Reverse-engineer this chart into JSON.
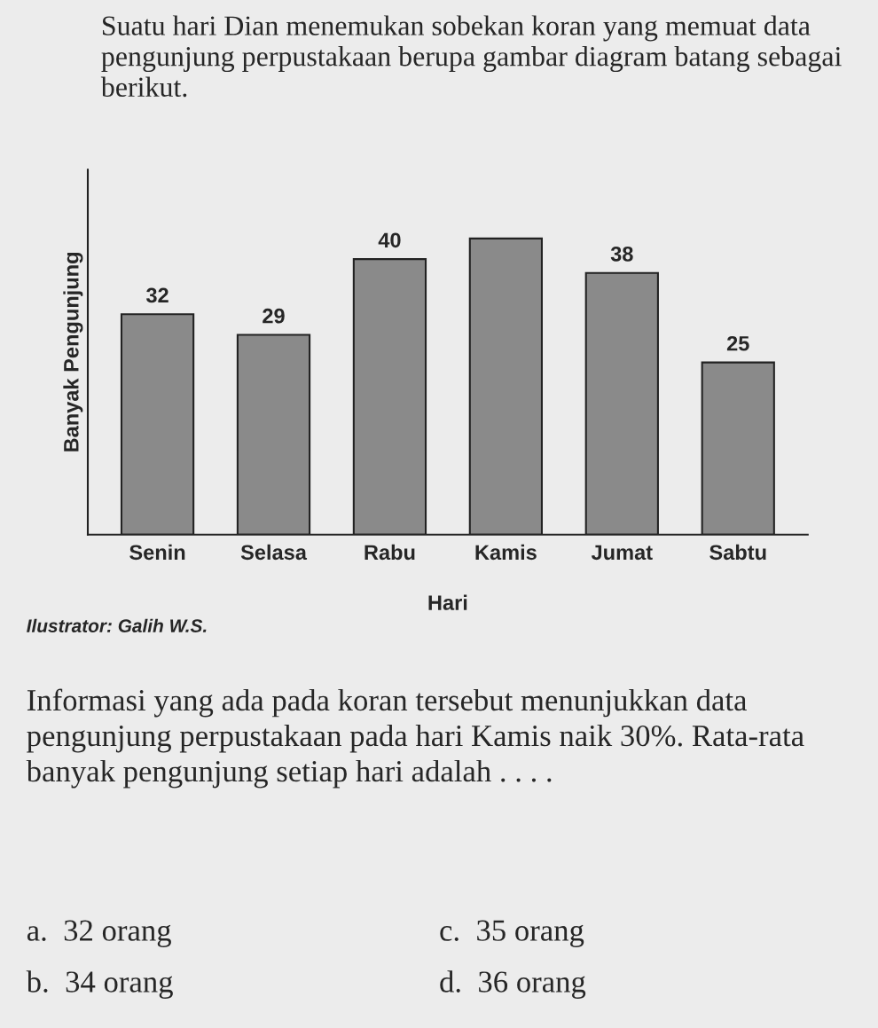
{
  "chart_data": {
    "type": "bar",
    "title": "Suatu hari Dian menemukan sobekan koran yang memuat data pengunjung perpustakaan berupa gambar diagram batang sebagai berikut.",
    "xlabel": "Hari",
    "ylabel": "Banyak Pengunjung",
    "categories": [
      "Senin",
      "Selasa",
      "Rabu",
      "Kamis",
      "Jumat",
      "Sabtu"
    ],
    "values": [
      32,
      29,
      40,
      43,
      38,
      25
    ],
    "value_labels": [
      "32",
      "29",
      "40",
      null,
      "38",
      "25"
    ],
    "color": "#8a8a8a",
    "ylim": [
      0,
      53
    ],
    "tick_labels": "x",
    "grid": false,
    "annotations": [
      "Ilustrator: Galih W.S.",
      "Informasi yang ada pada koran tersebut menunjukkan data pengunjung perpustakaan pada hari Kamis naik 30%. Rata-rata banyak pengunjung setiap hari adalah . . . .",
      "a.  32 orang",
      "c.  35 orang",
      "b.  34 orang",
      "d.  36 orang"
    ]
  }
}
